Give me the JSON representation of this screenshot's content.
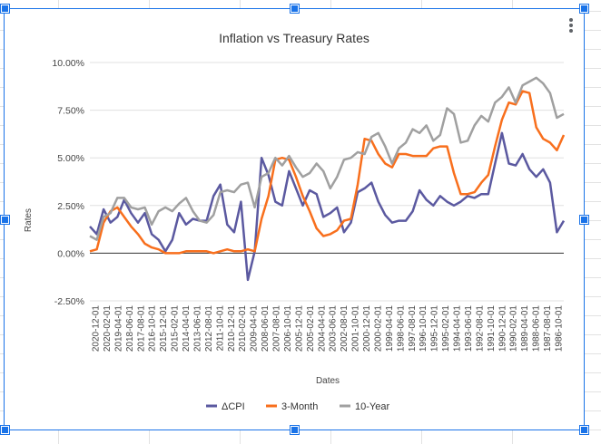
{
  "chart_menu": {
    "icon": "more-vert-icon"
  },
  "colors": {
    "cpi": "#5b59a0",
    "m3": "#f86f1d",
    "y10": "#a0a0a0",
    "selection": "#1a73e8"
  },
  "chart_data": {
    "type": "line",
    "title": "Inflation vs Treasury Rates",
    "xlabel": "Dates",
    "ylabel": "Rates",
    "ylim": [
      -2.5,
      10.0
    ],
    "y_ticks": [
      "10.00%",
      "7.50%",
      "5.00%",
      "2.50%",
      "0.00%",
      "-2.50%"
    ],
    "x_ticks": [
      "2020-12-01",
      "2020-02-01",
      "2019-04-01",
      "2018-06-01",
      "2017-08-01",
      "2016-10-01",
      "2015-12-01",
      "2015-02-01",
      "2014-04-01",
      "2013-06-01",
      "2012-08-01",
      "2011-10-01",
      "2010-12-01",
      "2010-02-01",
      "2009-04-01",
      "2008-06-01",
      "2007-08-01",
      "2006-10-01",
      "2005-12-01",
      "2005-02-01",
      "2004-04-01",
      "2003-06-01",
      "2002-08-01",
      "2001-10-01",
      "2000-12-01",
      "2000-02-01",
      "1999-04-01",
      "1998-06-01",
      "1997-08-01",
      "1996-10-01",
      "1995-12-01",
      "1995-02-01",
      "1994-04-01",
      "1993-06-01",
      "1992-08-01",
      "1991-10-01",
      "1990-12-01",
      "1990-02-01",
      "1989-04-01",
      "1988-06-01",
      "1987-08-01",
      "1986-10-01"
    ],
    "x_order": "reverse-chronological",
    "grid": "horizontal",
    "legend_position": "bottom",
    "series": [
      {
        "name": "ΔCPI",
        "color": "#5b59a0",
        "x": [
          "2020-12",
          "2020-06",
          "2019-12",
          "2019-06",
          "2018-12",
          "2018-06",
          "2017-12",
          "2017-06",
          "2016-12",
          "2016-06",
          "2015-12",
          "2015-06",
          "2014-12",
          "2014-06",
          "2013-12",
          "2013-06",
          "2012-12",
          "2012-06",
          "2011-12",
          "2011-06",
          "2010-12",
          "2010-06",
          "2009-12",
          "2009-06",
          "2008-12",
          "2008-06",
          "2007-12",
          "2007-06",
          "2006-12",
          "2006-06",
          "2005-12",
          "2005-06",
          "2004-12",
          "2004-06",
          "2003-12",
          "2003-06",
          "2002-12",
          "2002-06",
          "2001-12",
          "2001-06",
          "2000-12",
          "2000-06",
          "1999-12",
          "1999-06",
          "1998-12",
          "1998-06",
          "1997-12",
          "1997-06",
          "1996-12",
          "1996-06",
          "1995-12",
          "1995-06",
          "1994-12",
          "1994-06",
          "1993-12",
          "1993-06",
          "1992-12",
          "1992-06",
          "1991-12",
          "1991-06",
          "1990-12",
          "1990-06",
          "1989-12",
          "1989-06",
          "1988-12",
          "1988-06",
          "1987-12",
          "1987-06",
          "1986-12",
          "1986-06"
        ],
        "y": [
          1.4,
          1.0,
          2.3,
          1.6,
          1.9,
          2.8,
          2.1,
          1.6,
          2.1,
          1.0,
          0.7,
          0.1,
          0.7,
          2.1,
          1.5,
          1.8,
          1.7,
          1.7,
          3.0,
          3.6,
          1.5,
          1.1,
          2.7,
          -1.4,
          0.1,
          5.0,
          4.1,
          2.7,
          2.5,
          4.3,
          3.4,
          2.5,
          3.3,
          3.1,
          1.9,
          2.1,
          2.4,
          1.1,
          1.6,
          3.2,
          3.4,
          3.7,
          2.7,
          2.0,
          1.6,
          1.7,
          1.7,
          2.2,
          3.3,
          2.8,
          2.5,
          3.0,
          2.7,
          2.5,
          2.7,
          3.0,
          2.9,
          3.1,
          3.1,
          4.7,
          6.3,
          4.7,
          4.6,
          5.2,
          4.4,
          4.0,
          4.4,
          3.7,
          1.1,
          1.7
        ]
      },
      {
        "name": "3-Month",
        "color": "#f86f1d",
        "x": [
          "2020-12",
          "2020-06",
          "2019-12",
          "2019-06",
          "2018-12",
          "2018-06",
          "2017-12",
          "2017-06",
          "2016-12",
          "2016-06",
          "2015-12",
          "2015-06",
          "2014-12",
          "2014-06",
          "2013-12",
          "2013-06",
          "2012-12",
          "2012-06",
          "2011-12",
          "2011-06",
          "2010-12",
          "2010-06",
          "2009-12",
          "2009-06",
          "2008-12",
          "2008-06",
          "2007-12",
          "2007-06",
          "2006-12",
          "2006-06",
          "2005-12",
          "2005-06",
          "2004-12",
          "2004-06",
          "2003-12",
          "2003-06",
          "2002-12",
          "2002-06",
          "2001-12",
          "2001-06",
          "2000-12",
          "2000-06",
          "1999-12",
          "1999-06",
          "1998-12",
          "1998-06",
          "1997-12",
          "1997-06",
          "1996-12",
          "1996-06",
          "1995-12",
          "1995-06",
          "1994-12",
          "1994-06",
          "1993-12",
          "1993-06",
          "1992-12",
          "1992-06",
          "1991-12",
          "1991-06",
          "1990-12",
          "1990-06",
          "1989-12",
          "1989-06",
          "1988-12",
          "1988-06",
          "1987-12",
          "1987-06",
          "1986-12",
          "1986-06"
        ],
        "y": [
          0.1,
          0.2,
          1.6,
          2.2,
          2.4,
          1.9,
          1.4,
          1.0,
          0.5,
          0.3,
          0.2,
          0.0,
          0.0,
          0.0,
          0.1,
          0.1,
          0.1,
          0.1,
          0.0,
          0.1,
          0.2,
          0.1,
          0.1,
          0.2,
          0.1,
          1.8,
          3.0,
          4.9,
          5.0,
          4.9,
          4.0,
          3.0,
          2.2,
          1.3,
          0.9,
          1.0,
          1.2,
          1.7,
          1.8,
          3.6,
          6.0,
          5.9,
          5.2,
          4.7,
          4.5,
          5.2,
          5.2,
          5.1,
          5.1,
          5.1,
          5.5,
          5.6,
          5.6,
          4.2,
          3.1,
          3.1,
          3.2,
          3.7,
          4.1,
          5.6,
          7.0,
          7.9,
          7.8,
          8.5,
          8.4,
          6.6,
          6.0,
          5.8,
          5.4,
          6.2
        ]
      },
      {
        "name": "10-Year",
        "color": "#a0a0a0",
        "x": [
          "2020-12",
          "2020-06",
          "2019-12",
          "2019-06",
          "2018-12",
          "2018-06",
          "2017-12",
          "2017-06",
          "2016-12",
          "2016-06",
          "2015-12",
          "2015-06",
          "2014-12",
          "2014-06",
          "2013-12",
          "2013-06",
          "2012-12",
          "2012-06",
          "2011-12",
          "2011-06",
          "2010-12",
          "2010-06",
          "2009-12",
          "2009-06",
          "2008-12",
          "2008-06",
          "2007-12",
          "2007-06",
          "2006-12",
          "2006-06",
          "2005-12",
          "2005-06",
          "2004-12",
          "2004-06",
          "2003-12",
          "2003-06",
          "2002-12",
          "2002-06",
          "2001-12",
          "2001-06",
          "2000-12",
          "2000-06",
          "1999-12",
          "1999-06",
          "1998-12",
          "1998-06",
          "1997-12",
          "1997-06",
          "1996-12",
          "1996-06",
          "1995-12",
          "1995-06",
          "1994-12",
          "1994-06",
          "1993-12",
          "1993-06",
          "1992-12",
          "1992-06",
          "1991-12",
          "1991-06",
          "1990-12",
          "1990-06",
          "1989-12",
          "1989-06",
          "1988-12",
          "1988-06",
          "1987-12",
          "1987-06",
          "1986-12",
          "1986-06"
        ],
        "y": [
          0.9,
          0.7,
          1.9,
          2.1,
          2.9,
          2.9,
          2.4,
          2.3,
          2.4,
          1.5,
          2.2,
          2.4,
          2.2,
          2.6,
          2.9,
          2.2,
          1.7,
          1.6,
          2.0,
          3.2,
          3.3,
          3.2,
          3.6,
          3.7,
          2.4,
          4.0,
          4.2,
          5.0,
          4.6,
          5.1,
          4.5,
          4.0,
          4.2,
          4.7,
          4.3,
          3.4,
          4.0,
          4.9,
          5.0,
          5.3,
          5.2,
          6.1,
          6.3,
          5.6,
          4.7,
          5.5,
          5.8,
          6.5,
          6.3,
          6.7,
          5.9,
          6.2,
          7.6,
          7.3,
          5.8,
          5.9,
          6.7,
          7.2,
          6.9,
          7.9,
          8.2,
          8.7,
          7.9,
          8.8,
          9.0,
          9.2,
          8.9,
          8.4,
          7.1,
          7.3
        ]
      }
    ]
  }
}
